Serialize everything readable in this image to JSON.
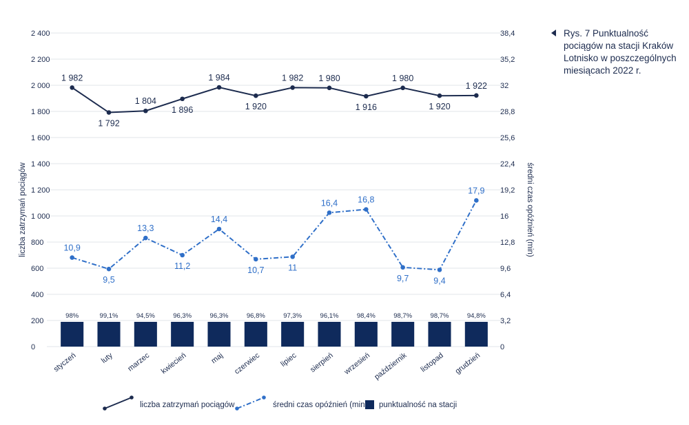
{
  "caption": {
    "marker_icon": "triangle-left-icon",
    "text": "Rys. 7   Punktualność pociągów na stacji Kraków Lotnisko w poszczególnych miesiącach 2022 r."
  },
  "chart_data": {
    "type": "bar",
    "categories": [
      "styczeń",
      "luty",
      "marzec",
      "kwiecień",
      "maj",
      "czerwiec",
      "lipiec",
      "sierpień",
      "wrzesień",
      "październik",
      "listopad",
      "grudzień"
    ],
    "ylabel_left": "liczba zatrzymań pociągów",
    "ylabel_right": "średni czas opóźnień (min)",
    "ylim_left": [
      0,
      2400
    ],
    "ylim_right": [
      0,
      38.4
    ],
    "yticks_left": [
      "0",
      "200",
      "400",
      "600",
      "800",
      "1 000",
      "1 200",
      "1 400",
      "1 600",
      "1 800",
      "2 000",
      "2 200",
      "2 400"
    ],
    "yticks_right": [
      "0",
      "3,2",
      "6,4",
      "9,6",
      "12,8",
      "16",
      "19,2",
      "22,4",
      "25,6",
      "28,8",
      "32",
      "35,2",
      "38,4"
    ],
    "grid": true,
    "legend_position": "bottom",
    "series": [
      {
        "name": "liczba zatrzymań pociągów",
        "type": "line",
        "axis": "left",
        "style": "solid",
        "color": "#1c2b4e",
        "values": [
          1982,
          1792,
          1804,
          1896,
          1984,
          1920,
          1982,
          1980,
          1916,
          1980,
          1920,
          1922
        ],
        "labels": [
          "1 982",
          "1 792",
          "1 804",
          "1 896",
          "1 984",
          "1 920",
          "1 982",
          "1 980",
          "1 916",
          "1 980",
          "1 920",
          "1 922"
        ],
        "label_placement": [
          "above",
          "below",
          "above",
          "below",
          "above",
          "below",
          "above",
          "above",
          "below",
          "above",
          "below",
          "above"
        ]
      },
      {
        "name": "średni czas opóźnień (min)",
        "type": "line",
        "axis": "right",
        "style": "dash-dot",
        "color": "#2f6fc8",
        "values": [
          10.9,
          9.5,
          13.3,
          11.2,
          14.4,
          10.7,
          11,
          16.4,
          16.8,
          9.7,
          9.4,
          17.9
        ],
        "labels": [
          "10,9",
          "9,5",
          "13,3",
          "11,2",
          "14,4",
          "10,7",
          "11",
          "16,4",
          "16,8",
          "9,7",
          "9,4",
          "17,9"
        ],
        "label_placement": [
          "above",
          "below",
          "above",
          "below",
          "above",
          "below",
          "below",
          "above",
          "above",
          "below",
          "below",
          "above"
        ]
      },
      {
        "name": "punktualność na stacji",
        "type": "bar",
        "color": "#0f2a5c",
        "values": [
          98,
          99.1,
          94.5,
          96.3,
          96.3,
          96.8,
          97.3,
          96.1,
          98.4,
          98.7,
          98.7,
          94.8
        ],
        "labels": [
          "98%",
          "99,1%",
          "94,5%",
          "96,3%",
          "96,3%",
          "96,8%",
          "97,3%",
          "96,1%",
          "98,4%",
          "98,7%",
          "98,7%",
          "94,8%"
        ]
      }
    ]
  }
}
